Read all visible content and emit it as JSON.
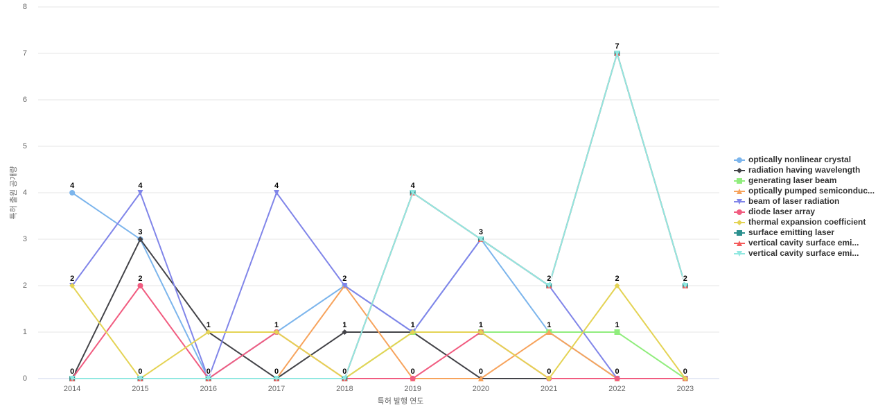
{
  "chart_data": {
    "type": "line",
    "x_label": "특허 발행 연도",
    "y_label": "특허 출원 공개량",
    "categories": [
      "2014",
      "2015",
      "2016",
      "2017",
      "2018",
      "2019",
      "2020",
      "2021",
      "2022",
      "2023"
    ],
    "ylim": [
      0,
      8
    ],
    "yticks": [
      0,
      1,
      2,
      3,
      4,
      5,
      6,
      7,
      8
    ],
    "grid": true,
    "legend": "right",
    "series": [
      {
        "name": "optically nonlinear crystal",
        "color": "#7cb5ec",
        "marker": "circle",
        "values": [
          4,
          3,
          0,
          1,
          2,
          1,
          3,
          1,
          0,
          0
        ]
      },
      {
        "name": "radiation having wavelength",
        "color": "#434348",
        "marker": "diamond",
        "values": [
          0,
          3,
          1,
          0,
          1,
          1,
          0,
          0,
          0,
          0
        ]
      },
      {
        "name": "generating laser beam",
        "color": "#90ed7d",
        "marker": "square",
        "values": [
          0,
          0,
          0,
          0,
          0,
          1,
          1,
          1,
          1,
          0
        ]
      },
      {
        "name": "optically pumped semiconduc...",
        "color": "#f7a35c",
        "marker": "triangle",
        "values": [
          0,
          0,
          0,
          0,
          2,
          0,
          0,
          1,
          0,
          0
        ]
      },
      {
        "name": "beam of laser radiation",
        "color": "#8085e9",
        "marker": "triangle-down",
        "values": [
          2,
          4,
          0,
          4,
          2,
          1,
          3,
          2,
          0,
          0
        ]
      },
      {
        "name": "diode laser array",
        "color": "#f15c80",
        "marker": "circle",
        "values": [
          0,
          2,
          0,
          1,
          0,
          0,
          1,
          0,
          0,
          0
        ]
      },
      {
        "name": "thermal expansion coefficient",
        "color": "#e4d354",
        "marker": "diamond",
        "values": [
          2,
          0,
          1,
          1,
          0,
          1,
          1,
          0,
          2,
          0
        ]
      },
      {
        "name": "surface emitting laser",
        "color": "#2b908f",
        "marker": "square",
        "values": [
          0,
          0,
          0,
          0,
          0,
          4,
          3,
          2,
          7,
          2
        ]
      },
      {
        "name": "vertical cavity surface emi...",
        "color": "#f45b5b",
        "marker": "triangle",
        "values": [
          0,
          0,
          0,
          0,
          0,
          4,
          3,
          2,
          7,
          2
        ]
      },
      {
        "name": "vertical cavity surface emi...",
        "color": "#91e8e1",
        "marker": "triangle-down",
        "values": [
          0,
          0,
          0,
          0,
          0,
          4,
          3,
          2,
          7,
          2
        ]
      }
    ]
  }
}
